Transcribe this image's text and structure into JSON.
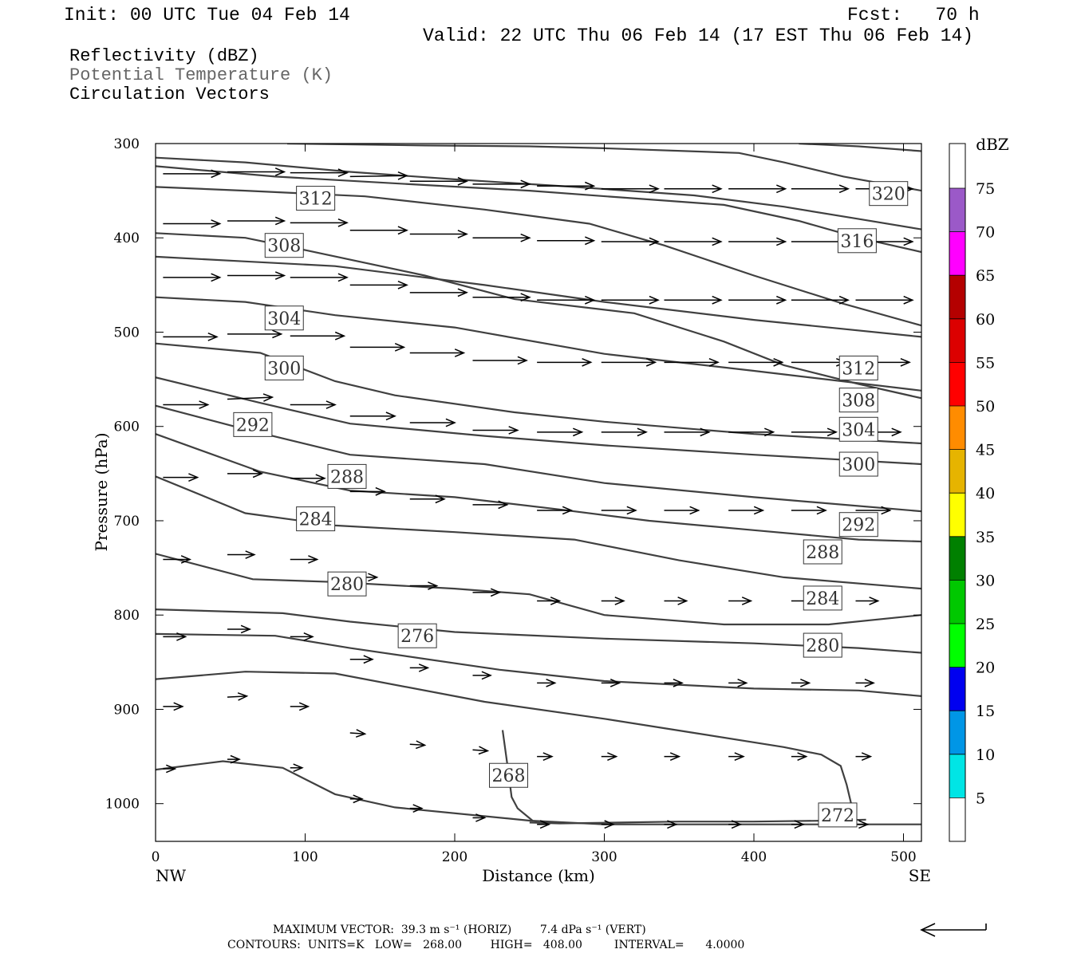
{
  "header": {
    "init": "Init: 00 UTC Tue 04 Feb 14",
    "fcst": "Fcst:   70 h",
    "valid": "Valid: 22 UTC Thu 06 Feb 14 (17 EST Thu 06 Feb 14)"
  },
  "legend": {
    "reflectivity": "Reflectivity (dBZ)",
    "theta": "Potential Temperature (K)",
    "vectors": "Circulation Vectors"
  },
  "footer": {
    "max_vector": "MAXIMUM VECTOR:  39.3 m s⁻¹ (HORIZ)        7.4 dPa s⁻¹ (VERT)",
    "contours": "CONTOURS:  UNITS=K   LOW=   268.00        HIGH=   408.00         INTERVAL=      4.0000"
  },
  "colorbar": {
    "unit": "dBZ",
    "levels": [
      5,
      10,
      15,
      20,
      25,
      30,
      35,
      40,
      45,
      50,
      55,
      60,
      65,
      70,
      75
    ],
    "colors": [
      "#00e5e5",
      "#0096e6",
      "#0000f0",
      "#00ff00",
      "#00c800",
      "#008000",
      "#ffff00",
      "#e6b400",
      "#ff8c00",
      "#ff0000",
      "#dc0000",
      "#b40000",
      "#ff00ff",
      "#9b59c8"
    ]
  },
  "chart_data": {
    "type": "line",
    "xlabel": "Distance (km)",
    "ylabel": "Pressure (hPa)",
    "xlim": [
      0,
      512
    ],
    "ylim": [
      1040,
      300
    ],
    "x_ticks": [
      0,
      100,
      200,
      300,
      400,
      500
    ],
    "y_ticks": [
      300,
      400,
      500,
      600,
      700,
      800,
      900,
      1000
    ],
    "x_end_left": "NW",
    "x_end_right": "SE",
    "contour_color": "#404040",
    "series": [
      {
        "label": "268",
        "x": [
          232,
          236,
          238,
          242,
          252
        ],
        "y": [
          922,
          968,
          993,
          1005,
          1018
        ],
        "label_at": [
          236,
          970
        ]
      },
      {
        "label": "272",
        "x": [
          250,
          270,
          310,
          350,
          400,
          450,
          475
        ],
        "y": [
          1020,
          1021,
          1020,
          1019,
          1019,
          1018,
          1017
        ],
        "label_at": [
          456,
          1012
        ]
      },
      {
        "label": "",
        "x": [
          0,
          60,
          120,
          220,
          300,
          360,
          420,
          445,
          458,
          462,
          465,
          468
        ],
        "y": [
          868,
          860,
          862,
          892,
          910,
          925,
          940,
          948,
          960,
          980,
          1000,
          1012
        ]
      },
      {
        "label": "",
        "x": [
          0,
          20,
          45,
          85,
          120,
          160,
          250,
          300,
          400,
          512
        ],
        "y": [
          964,
          960,
          955,
          962,
          990,
          1004,
          1018,
          1022,
          1022,
          1022
        ]
      },
      {
        "label": "276",
        "x": [
          0,
          80,
          130,
          230,
          300,
          400,
          470,
          512
        ],
        "y": [
          820,
          822,
          835,
          858,
          870,
          878,
          880,
          886
        ],
        "label_at": [
          175,
          822
        ]
      },
      {
        "label": "280",
        "x": [
          0,
          85,
          130,
          200,
          300,
          400,
          470,
          512
        ],
        "y": [
          794,
          798,
          807,
          818,
          825,
          830,
          835,
          840
        ],
        "label_at": [
          446,
          832
        ]
      },
      {
        "label": "284",
        "x": [
          0,
          65,
          120,
          200,
          250,
          300,
          380,
          450,
          512
        ],
        "y": [
          735,
          762,
          765,
          772,
          778,
          800,
          810,
          810,
          800
        ],
        "label_at": [
          446,
          782
        ]
      },
      {
        "label": "288",
        "x": [
          0,
          60,
          120,
          200,
          280,
          350,
          420,
          512
        ],
        "y": [
          653,
          692,
          705,
          712,
          720,
          742,
          760,
          772
        ],
        "label_at": [
          446,
          733
        ]
      },
      {
        "label": "292",
        "x": [
          0,
          70,
          130,
          200,
          270,
          330,
          400,
          470,
          512
        ],
        "y": [
          608,
          648,
          668,
          675,
          688,
          700,
          710,
          720,
          722
        ],
        "label_at": [
          470,
          704
        ]
      },
      {
        "label": "300",
        "x": [
          0,
          60,
          130,
          220,
          300,
          400,
          512
        ],
        "y": [
          578,
          603,
          630,
          640,
          660,
          675,
          690
        ],
        "label_at": [
          470,
          640
        ]
      },
      {
        "label": "304",
        "x": [
          0,
          70,
          130,
          220,
          300,
          400,
          512
        ],
        "y": [
          548,
          575,
          597,
          610,
          620,
          630,
          640
        ],
        "label_at": [
          470,
          603
        ]
      },
      {
        "label": "308",
        "x": [
          0,
          70,
          120,
          160,
          240,
          300,
          400,
          512
        ],
        "y": [
          512,
          522,
          552,
          567,
          585,
          595,
          608,
          618
        ],
        "label_at": [
          470,
          572
        ]
      },
      {
        "label": "312",
        "x": [
          0,
          60,
          120,
          200,
          300,
          400,
          512
        ],
        "y": [
          463,
          468,
          482,
          495,
          523,
          541,
          562
        ],
        "label_at": [
          470,
          538
        ]
      },
      {
        "label": "",
        "x": [
          0,
          60,
          120,
          220,
          300,
          400,
          512
        ],
        "y": [
          420,
          425,
          430,
          450,
          468,
          487,
          505
        ]
      },
      {
        "label": "",
        "x": [
          0,
          60,
          100,
          180,
          240,
          320,
          380,
          420,
          470,
          512
        ],
        "y": [
          395,
          400,
          413,
          440,
          465,
          480,
          510,
          535,
          555,
          570
        ]
      },
      {
        "label": "",
        "x": [
          0,
          60,
          140,
          220,
          290,
          340,
          400,
          460,
          512
        ],
        "y": [
          346,
          350,
          356,
          370,
          385,
          408,
          440,
          470,
          493
        ]
      },
      {
        "label": "",
        "x": [
          0,
          80,
          180,
          250,
          310,
          380,
          430,
          470,
          512
        ],
        "y": [
          324,
          335,
          344,
          350,
          357,
          365,
          382,
          400,
          415
        ]
      },
      {
        "label": "",
        "x": [
          0,
          60,
          130,
          200,
          280,
          360,
          420,
          470,
          512
        ],
        "y": [
          315,
          320,
          330,
          338,
          346,
          355,
          367,
          380,
          391
        ]
      },
      {
        "label": "",
        "x": [
          88,
          180,
          250,
          300,
          390,
          420,
          460,
          512
        ],
        "y": [
          300,
          302,
          303,
          305,
          310,
          320,
          335,
          350
        ]
      },
      {
        "label": "",
        "x": [
          430,
          470,
          512
        ],
        "y": [
          300,
          303,
          308
        ]
      }
    ],
    "annotations": [
      {
        "text": "312",
        "x": 107,
        "y": 358
      },
      {
        "text": "320",
        "x": 490,
        "y": 353
      },
      {
        "text": "308",
        "x": 86,
        "y": 408
      },
      {
        "text": "316",
        "x": 469,
        "y": 403
      },
      {
        "text": "304",
        "x": 86,
        "y": 485
      },
      {
        "text": "300",
        "x": 86,
        "y": 538
      },
      {
        "text": "292",
        "x": 65,
        "y": 598
      },
      {
        "text": "288",
        "x": 128,
        "y": 653
      },
      {
        "text": "284",
        "x": 107,
        "y": 698
      },
      {
        "text": "280",
        "x": 128,
        "y": 767
      }
    ],
    "vectors": [
      {
        "x": 5,
        "y": 332,
        "u": 38,
        "w": 0
      },
      {
        "x": 48,
        "y": 330,
        "u": 38,
        "w": 0
      },
      {
        "x": 90,
        "y": 331,
        "u": 38,
        "w": 0
      },
      {
        "x": 130,
        "y": 335,
        "u": 38,
        "w": -1
      },
      {
        "x": 170,
        "y": 340,
        "u": 38,
        "w": 0
      },
      {
        "x": 212,
        "y": 343,
        "u": 38,
        "w": 0
      },
      {
        "x": 255,
        "y": 345,
        "u": 38,
        "w": 0
      },
      {
        "x": 298,
        "y": 348,
        "u": 38,
        "w": 0
      },
      {
        "x": 340,
        "y": 348,
        "u": 38,
        "w": 0
      },
      {
        "x": 383,
        "y": 348,
        "u": 38,
        "w": 0
      },
      {
        "x": 425,
        "y": 348,
        "u": 38,
        "w": 0
      },
      {
        "x": 468,
        "y": 348,
        "u": 38,
        "w": 0
      },
      {
        "x": 5,
        "y": 385,
        "u": 38,
        "w": 0
      },
      {
        "x": 48,
        "y": 382,
        "u": 38,
        "w": 0
      },
      {
        "x": 90,
        "y": 384,
        "u": 38,
        "w": 0
      },
      {
        "x": 130,
        "y": 392,
        "u": 38,
        "w": 0
      },
      {
        "x": 170,
        "y": 396,
        "u": 38,
        "w": 0
      },
      {
        "x": 212,
        "y": 400,
        "u": 38,
        "w": 0
      },
      {
        "x": 255,
        "y": 403,
        "u": 38,
        "w": 0
      },
      {
        "x": 298,
        "y": 404,
        "u": 38,
        "w": 0
      },
      {
        "x": 340,
        "y": 404,
        "u": 38,
        "w": 0
      },
      {
        "x": 383,
        "y": 404,
        "u": 38,
        "w": 0
      },
      {
        "x": 425,
        "y": 404,
        "u": 38,
        "w": 0
      },
      {
        "x": 468,
        "y": 404,
        "u": 38,
        "w": 0
      },
      {
        "x": 5,
        "y": 442,
        "u": 38,
        "w": 0
      },
      {
        "x": 48,
        "y": 440,
        "u": 38,
        "w": 0
      },
      {
        "x": 90,
        "y": 442,
        "u": 38,
        "w": 0
      },
      {
        "x": 130,
        "y": 450,
        "u": 38,
        "w": 0
      },
      {
        "x": 170,
        "y": 458,
        "u": 38,
        "w": 0
      },
      {
        "x": 212,
        "y": 463,
        "u": 38,
        "w": 0
      },
      {
        "x": 255,
        "y": 466,
        "u": 38,
        "w": 0
      },
      {
        "x": 298,
        "y": 466,
        "u": 38,
        "w": 0
      },
      {
        "x": 340,
        "y": 466,
        "u": 38,
        "w": 0
      },
      {
        "x": 383,
        "y": 466,
        "u": 38,
        "w": 0
      },
      {
        "x": 425,
        "y": 466,
        "u": 38,
        "w": 0
      },
      {
        "x": 468,
        "y": 466,
        "u": 38,
        "w": 0
      },
      {
        "x": 5,
        "y": 505,
        "u": 36,
        "w": 0
      },
      {
        "x": 48,
        "y": 502,
        "u": 36,
        "w": 0
      },
      {
        "x": 90,
        "y": 504,
        "u": 36,
        "w": 0
      },
      {
        "x": 130,
        "y": 516,
        "u": 36,
        "w": 0
      },
      {
        "x": 170,
        "y": 522,
        "u": 36,
        "w": 0
      },
      {
        "x": 212,
        "y": 530,
        "u": 36,
        "w": 0
      },
      {
        "x": 255,
        "y": 532,
        "u": 36,
        "w": 0
      },
      {
        "x": 298,
        "y": 532,
        "u": 36,
        "w": 0
      },
      {
        "x": 340,
        "y": 532,
        "u": 36,
        "w": 0
      },
      {
        "x": 383,
        "y": 532,
        "u": 36,
        "w": 0
      },
      {
        "x": 425,
        "y": 532,
        "u": 36,
        "w": 0
      },
      {
        "x": 468,
        "y": 532,
        "u": 36,
        "w": 0
      },
      {
        "x": 5,
        "y": 577,
        "u": 30,
        "w": 0
      },
      {
        "x": 48,
        "y": 571,
        "u": 30,
        "w": -2
      },
      {
        "x": 90,
        "y": 577,
        "u": 30,
        "w": 0
      },
      {
        "x": 130,
        "y": 589,
        "u": 30,
        "w": 0
      },
      {
        "x": 170,
        "y": 596,
        "u": 30,
        "w": 0
      },
      {
        "x": 212,
        "y": 604,
        "u": 30,
        "w": 0
      },
      {
        "x": 255,
        "y": 606,
        "u": 30,
        "w": 0
      },
      {
        "x": 298,
        "y": 606,
        "u": 30,
        "w": 0
      },
      {
        "x": 340,
        "y": 606,
        "u": 30,
        "w": 0
      },
      {
        "x": 383,
        "y": 606,
        "u": 30,
        "w": 0
      },
      {
        "x": 425,
        "y": 606,
        "u": 30,
        "w": 0
      },
      {
        "x": 468,
        "y": 606,
        "u": 30,
        "w": 0
      },
      {
        "x": 5,
        "y": 654,
        "u": 23,
        "w": 0
      },
      {
        "x": 48,
        "y": 650,
        "u": 23,
        "w": 0
      },
      {
        "x": 90,
        "y": 655,
        "u": 23,
        "w": 0
      },
      {
        "x": 130,
        "y": 669,
        "u": 23,
        "w": 0
      },
      {
        "x": 170,
        "y": 677,
        "u": 23,
        "w": 0
      },
      {
        "x": 212,
        "y": 683,
        "u": 23,
        "w": 0
      },
      {
        "x": 255,
        "y": 689,
        "u": 23,
        "w": 0
      },
      {
        "x": 298,
        "y": 689,
        "u": 23,
        "w": 0
      },
      {
        "x": 340,
        "y": 689,
        "u": 23,
        "w": 0
      },
      {
        "x": 383,
        "y": 689,
        "u": 23,
        "w": 0
      },
      {
        "x": 425,
        "y": 689,
        "u": 23,
        "w": 0
      },
      {
        "x": 468,
        "y": 689,
        "u": 23,
        "w": 0
      },
      {
        "x": 5,
        "y": 741,
        "u": 18,
        "w": 0
      },
      {
        "x": 48,
        "y": 736,
        "u": 18,
        "w": 0
      },
      {
        "x": 90,
        "y": 741,
        "u": 18,
        "w": 0
      },
      {
        "x": 130,
        "y": 760,
        "u": 18,
        "w": 0
      },
      {
        "x": 170,
        "y": 769,
        "u": 18,
        "w": 0
      },
      {
        "x": 212,
        "y": 776,
        "u": 18,
        "w": 0
      },
      {
        "x": 255,
        "y": 785,
        "u": 15,
        "w": 0
      },
      {
        "x": 298,
        "y": 785,
        "u": 15,
        "w": 0
      },
      {
        "x": 340,
        "y": 785,
        "u": 15,
        "w": 0
      },
      {
        "x": 383,
        "y": 785,
        "u": 15,
        "w": 0
      },
      {
        "x": 425,
        "y": 785,
        "u": 15,
        "w": 0
      },
      {
        "x": 468,
        "y": 785,
        "u": 15,
        "w": 0
      },
      {
        "x": 5,
        "y": 823,
        "u": 15,
        "w": 0
      },
      {
        "x": 48,
        "y": 815,
        "u": 15,
        "w": 0
      },
      {
        "x": 90,
        "y": 823,
        "u": 15,
        "w": 0
      },
      {
        "x": 130,
        "y": 847,
        "u": 15,
        "w": 0
      },
      {
        "x": 170,
        "y": 856,
        "u": 12,
        "w": 0
      },
      {
        "x": 212,
        "y": 864,
        "u": 12,
        "w": 0
      },
      {
        "x": 255,
        "y": 872,
        "u": 12,
        "w": 0
      },
      {
        "x": 298,
        "y": 872,
        "u": 12,
        "w": 0
      },
      {
        "x": 340,
        "y": 872,
        "u": 12,
        "w": 0
      },
      {
        "x": 383,
        "y": 872,
        "u": 12,
        "w": 0
      },
      {
        "x": 425,
        "y": 872,
        "u": 12,
        "w": 0
      },
      {
        "x": 468,
        "y": 872,
        "u": 12,
        "w": 0
      },
      {
        "x": 5,
        "y": 897,
        "u": 13,
        "w": 0
      },
      {
        "x": 48,
        "y": 887,
        "u": 13,
        "w": -1
      },
      {
        "x": 90,
        "y": 897,
        "u": 12,
        "w": 0
      },
      {
        "x": 130,
        "y": 925,
        "u": 10,
        "w": 1
      },
      {
        "x": 170,
        "y": 937,
        "u": 10,
        "w": 1
      },
      {
        "x": 212,
        "y": 943,
        "u": 10,
        "w": 1
      },
      {
        "x": 255,
        "y": 950,
        "u": 10,
        "w": 0
      },
      {
        "x": 298,
        "y": 950,
        "u": 10,
        "w": 0
      },
      {
        "x": 340,
        "y": 950,
        "u": 10,
        "w": 0
      },
      {
        "x": 383,
        "y": 950,
        "u": 10,
        "w": 0
      },
      {
        "x": 425,
        "y": 950,
        "u": 10,
        "w": 0
      },
      {
        "x": 468,
        "y": 950,
        "u": 10,
        "w": 0
      },
      {
        "x": 5,
        "y": 963,
        "u": 8,
        "w": 0
      },
      {
        "x": 48,
        "y": 953,
        "u": 8,
        "w": 0
      },
      {
        "x": 90,
        "y": 962,
        "u": 8,
        "w": 0
      },
      {
        "x": 130,
        "y": 995,
        "u": 8,
        "w": 0
      },
      {
        "x": 170,
        "y": 1005,
        "u": 8,
        "w": 0
      },
      {
        "x": 212,
        "y": 1015,
        "u": 8,
        "w": 0
      },
      {
        "x": 255,
        "y": 1022,
        "u": 8,
        "w": 0
      },
      {
        "x": 298,
        "y": 1022,
        "u": 8,
        "w": 0
      },
      {
        "x": 340,
        "y": 1022,
        "u": 8,
        "w": 0
      },
      {
        "x": 383,
        "y": 1022,
        "u": 8,
        "w": 0
      },
      {
        "x": 425,
        "y": 1022,
        "u": 8,
        "w": 0
      },
      {
        "x": 468,
        "y": 1022,
        "u": 8,
        "w": 0
      }
    ]
  }
}
